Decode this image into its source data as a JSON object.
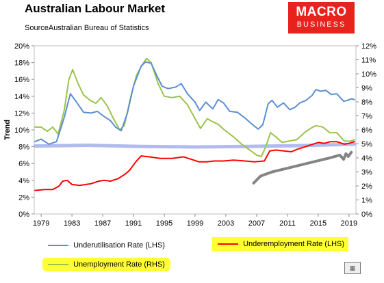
{
  "header": {
    "title": "Australian Labour Market",
    "subtitle": "SourceAustralian Bureau of Statistics",
    "logo_line1": "MACRO",
    "logo_line2": "BUSINESS"
  },
  "colors": {
    "underutilisation": "#5b8fd0",
    "underemployment": "#ff0000",
    "unemployment": "#9bc24a",
    "flat_band": "#a9b4ec",
    "extra_series": "#777777",
    "highlight": "#ffff33"
  },
  "chart_data": {
    "type": "line",
    "ylabel": "Trend",
    "xlim": [
      1978.1,
      2019.9
    ],
    "ylim_left": [
      0,
      20
    ],
    "ylim_right": [
      0,
      12
    ],
    "x_ticks": [
      "1979",
      "1983",
      "1987",
      "1991",
      "1995",
      "1999",
      "2003",
      "2007",
      "2011",
      "2015",
      "2019"
    ],
    "y_ticks_left": [
      "0%",
      "2%",
      "4%",
      "6%",
      "8%",
      "10%",
      "12%",
      "14%",
      "16%",
      "18%",
      "20%"
    ],
    "y_ticks_right": [
      "0%",
      "1%",
      "2%",
      "3%",
      "4%",
      "5%",
      "6%",
      "7%",
      "8%",
      "9%",
      "10%",
      "11%",
      "12%"
    ],
    "grid": false,
    "legend_position": "bottom",
    "series": [
      {
        "name": "Underutilisation Rate (LHS)",
        "axis": "left",
        "color": "#5b8fd0",
        "points": [
          [
            1978.2,
            8.6
          ],
          [
            1979.0,
            8.9
          ],
          [
            1980.0,
            8.3
          ],
          [
            1981.0,
            8.6
          ],
          [
            1982.0,
            11.5
          ],
          [
            1982.8,
            14.3
          ],
          [
            1983.6,
            13.3
          ],
          [
            1984.5,
            12.1
          ],
          [
            1985.5,
            12.0
          ],
          [
            1986.3,
            12.2
          ],
          [
            1987.0,
            11.7
          ],
          [
            1988.0,
            11.1
          ],
          [
            1988.7,
            10.3
          ],
          [
            1989.4,
            9.9
          ],
          [
            1990.2,
            12.0
          ],
          [
            1991.0,
            15.2
          ],
          [
            1992.0,
            17.6
          ],
          [
            1992.6,
            18.1
          ],
          [
            1993.3,
            17.9
          ],
          [
            1994.0,
            16.5
          ],
          [
            1994.7,
            15.2
          ],
          [
            1995.5,
            14.9
          ],
          [
            1996.5,
            15.1
          ],
          [
            1997.2,
            15.5
          ],
          [
            1998.0,
            14.3
          ],
          [
            1999.0,
            13.3
          ],
          [
            1999.6,
            12.3
          ],
          [
            2000.4,
            13.3
          ],
          [
            2001.3,
            12.5
          ],
          [
            2002.0,
            13.6
          ],
          [
            2002.7,
            13.2
          ],
          [
            2003.5,
            12.2
          ],
          [
            2004.5,
            12.1
          ],
          [
            2005.5,
            11.4
          ],
          [
            2006.5,
            10.6
          ],
          [
            2007.2,
            10.1
          ],
          [
            2007.8,
            10.6
          ],
          [
            2008.5,
            13.1
          ],
          [
            2009.0,
            13.5
          ],
          [
            2009.7,
            12.7
          ],
          [
            2010.5,
            13.2
          ],
          [
            2011.3,
            12.4
          ],
          [
            2012.0,
            12.7
          ],
          [
            2012.6,
            13.2
          ],
          [
            2013.4,
            13.5
          ],
          [
            2014.2,
            14.1
          ],
          [
            2014.7,
            14.8
          ],
          [
            2015.3,
            14.6
          ],
          [
            2016.0,
            14.7
          ],
          [
            2016.7,
            14.2
          ],
          [
            2017.4,
            14.3
          ],
          [
            2018.3,
            13.4
          ],
          [
            2018.8,
            13.5
          ],
          [
            2019.3,
            13.7
          ],
          [
            2019.7,
            13.6
          ]
        ]
      },
      {
        "name": "Underemployment Rate (LHS)",
        "axis": "left",
        "color": "#ff0000",
        "points": [
          [
            1978.2,
            2.8
          ],
          [
            1979.5,
            2.9
          ],
          [
            1980.5,
            2.9
          ],
          [
            1981.3,
            3.3
          ],
          [
            1981.8,
            3.9
          ],
          [
            1982.4,
            4.0
          ],
          [
            1983.0,
            3.5
          ],
          [
            1984.0,
            3.4
          ],
          [
            1985.5,
            3.6
          ],
          [
            1986.5,
            3.9
          ],
          [
            1987.2,
            4.0
          ],
          [
            1988.0,
            3.9
          ],
          [
            1989.0,
            4.2
          ],
          [
            1990.0,
            4.8
          ],
          [
            1990.5,
            5.2
          ],
          [
            1991.3,
            6.2
          ],
          [
            1992.0,
            6.9
          ],
          [
            1993.0,
            6.8
          ],
          [
            1994.5,
            6.6
          ],
          [
            1996.0,
            6.6
          ],
          [
            1997.5,
            6.8
          ],
          [
            1998.5,
            6.5
          ],
          [
            1999.5,
            6.2
          ],
          [
            2000.5,
            6.2
          ],
          [
            2001.5,
            6.3
          ],
          [
            2002.7,
            6.3
          ],
          [
            2004.0,
            6.4
          ],
          [
            2005.5,
            6.3
          ],
          [
            2006.7,
            6.2
          ],
          [
            2008.0,
            6.3
          ],
          [
            2008.7,
            7.5
          ],
          [
            2009.5,
            7.6
          ],
          [
            2010.5,
            7.5
          ],
          [
            2011.5,
            7.4
          ],
          [
            2012.3,
            7.7
          ],
          [
            2013.0,
            7.9
          ],
          [
            2014.3,
            8.3
          ],
          [
            2015.0,
            8.5
          ],
          [
            2015.8,
            8.4
          ],
          [
            2016.6,
            8.6
          ],
          [
            2017.4,
            8.6
          ],
          [
            2018.4,
            8.3
          ],
          [
            2019.0,
            8.4
          ],
          [
            2019.7,
            8.6
          ]
        ]
      },
      {
        "name": "Unemployment Rate (RHS)",
        "axis": "right",
        "color": "#9bc24a",
        "points": [
          [
            1978.2,
            6.2
          ],
          [
            1979.0,
            6.2
          ],
          [
            1979.8,
            5.9
          ],
          [
            1980.5,
            6.2
          ],
          [
            1981.2,
            5.7
          ],
          [
            1982.0,
            7.4
          ],
          [
            1982.6,
            9.6
          ],
          [
            1983.1,
            10.3
          ],
          [
            1983.8,
            9.3
          ],
          [
            1984.5,
            8.5
          ],
          [
            1985.4,
            8.1
          ],
          [
            1986.1,
            7.9
          ],
          [
            1986.8,
            8.3
          ],
          [
            1987.6,
            7.7
          ],
          [
            1988.4,
            6.8
          ],
          [
            1989.2,
            6.0
          ],
          [
            1989.8,
            6.3
          ],
          [
            1990.7,
            8.5
          ],
          [
            1991.4,
            9.9
          ],
          [
            1992.2,
            10.7
          ],
          [
            1992.7,
            11.1
          ],
          [
            1993.3,
            10.8
          ],
          [
            1994.2,
            9.3
          ],
          [
            1995.0,
            8.4
          ],
          [
            1996.0,
            8.3
          ],
          [
            1997.0,
            8.4
          ],
          [
            1998.0,
            7.8
          ],
          [
            1999.0,
            6.8
          ],
          [
            1999.7,
            6.1
          ],
          [
            2000.6,
            6.8
          ],
          [
            2001.2,
            6.6
          ],
          [
            2002.0,
            6.4
          ],
          [
            2002.8,
            6.0
          ],
          [
            2004.0,
            5.5
          ],
          [
            2005.0,
            5.0
          ],
          [
            2006.0,
            4.6
          ],
          [
            2007.0,
            4.2
          ],
          [
            2007.6,
            4.1
          ],
          [
            2008.2,
            4.8
          ],
          [
            2008.8,
            5.8
          ],
          [
            2009.5,
            5.5
          ],
          [
            2010.3,
            5.1
          ],
          [
            2011.2,
            5.2
          ],
          [
            2012.2,
            5.3
          ],
          [
            2013.2,
            5.8
          ],
          [
            2014.0,
            6.1
          ],
          [
            2014.7,
            6.3
          ],
          [
            2015.6,
            6.2
          ],
          [
            2016.5,
            5.8
          ],
          [
            2017.4,
            5.8
          ],
          [
            2018.4,
            5.2
          ],
          [
            2019.2,
            5.2
          ],
          [
            2019.7,
            5.3
          ]
        ]
      },
      {
        "axis": "right",
        "color": "#a9b4ec",
        "style": "band",
        "points": [
          [
            1978.2,
            4.85
          ],
          [
            1985.0,
            4.9
          ],
          [
            1992.0,
            4.82
          ],
          [
            1999.0,
            4.78
          ],
          [
            2006.0,
            4.82
          ],
          [
            2013.0,
            4.88
          ],
          [
            2019.7,
            4.98
          ]
        ]
      },
      {
        "axis": "right",
        "color": "#777777",
        "style": "band",
        "points": [
          [
            2006.6,
            2.2
          ],
          [
            2007.5,
            2.7
          ],
          [
            2009.0,
            3.0
          ],
          [
            2010.5,
            3.2
          ],
          [
            2012.0,
            3.4
          ],
          [
            2013.5,
            3.6
          ],
          [
            2015.0,
            3.8
          ],
          [
            2016.5,
            4.0
          ],
          [
            2017.8,
            4.2
          ],
          [
            2018.3,
            3.9
          ],
          [
            2018.6,
            4.3
          ],
          [
            2018.9,
            4.1
          ],
          [
            2019.3,
            4.4
          ]
        ]
      }
    ]
  },
  "legend": {
    "items": [
      {
        "label": "Underutilisation Rate (LHS)",
        "color": "#5b8fd0",
        "highlight": false
      },
      {
        "label": "Underemployment Rate (LHS)",
        "color": "#ff0000",
        "highlight": true
      },
      {
        "label": "Unemployment Rate (RHS)",
        "color": "#9bc24a",
        "highlight": true
      }
    ]
  }
}
